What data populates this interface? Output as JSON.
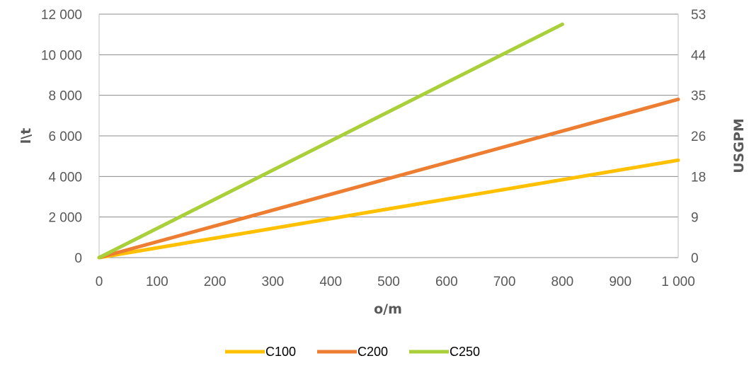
{
  "chart_data": {
    "type": "line",
    "x": [
      0,
      800,
      1000
    ],
    "series": [
      {
        "name": "C100",
        "color": "#ffc000",
        "values": [
          0,
          null,
          4800
        ]
      },
      {
        "name": "C200",
        "color": "#ed7d31",
        "values": [
          0,
          null,
          7800
        ]
      },
      {
        "name": "C250",
        "color": "#a9d039",
        "values": [
          0,
          11500,
          null
        ]
      }
    ],
    "xlabel": "o/m",
    "ylabel": "l\\t",
    "y2label": "USGPM",
    "xlim": [
      0,
      1000
    ],
    "ylim": [
      0,
      12000
    ],
    "x_ticks": [
      "0",
      "100",
      "200",
      "300",
      "400",
      "500",
      "600",
      "700",
      "800",
      "900",
      "1 000"
    ],
    "y_ticks": [
      "0",
      "2 000",
      "4 000",
      "6 000",
      "8 000",
      "10 000",
      "12 000"
    ],
    "y2_ticks": [
      "0",
      "9",
      "18",
      "26",
      "35",
      "44",
      "53"
    ],
    "grid": "horizontal",
    "legend_position": "bottom"
  }
}
